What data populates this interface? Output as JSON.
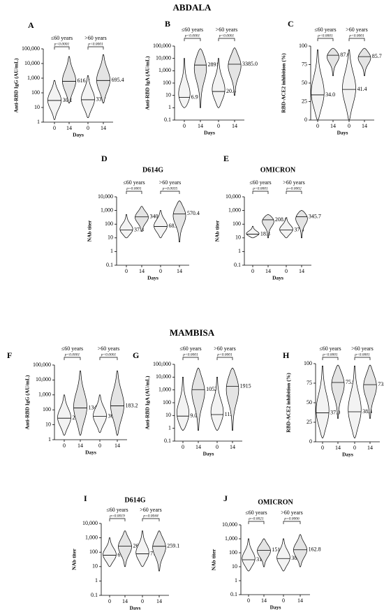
{
  "sections": [
    "ABDALA",
    "MAMBISA"
  ],
  "chart_data": [
    {
      "type": "violin",
      "panel": "A",
      "y_label": "Anti-RBD IgG (AU/mL)",
      "x_label": "Days",
      "log_y": true,
      "ylim": [
        1,
        100000
      ],
      "yticks": [
        1,
        10,
        100,
        {
          "value": 1000,
          "label": "1,000"
        },
        {
          "value": 10000,
          "label": "10,000"
        },
        {
          "value": 100000,
          "label": "100,000"
        }
      ],
      "groups": [
        "≤60 years",
        ">60 years"
      ],
      "p_values": [
        "p<0.0001",
        "p<0.0001"
      ],
      "categories": [
        "0",
        "14",
        "0",
        "14"
      ],
      "values": [
        30.1,
        616.2,
        33.7,
        695.4
      ],
      "value_labels": [
        "30.1",
        "616.2",
        "33.7",
        "695.4"
      ],
      "mins": [
        1.5,
        20,
        2,
        20
      ],
      "maxs": [
        700,
        30000,
        1500,
        40000
      ]
    },
    {
      "type": "violin",
      "panel": "B",
      "y_label": "Anti-RBD IgA (AU/mL)",
      "x_label": "Days",
      "log_y": true,
      "ylim": [
        0.1,
        100000
      ],
      "yticks": [
        0.1,
        1,
        10,
        100,
        {
          "value": 1000,
          "label": "1,000"
        },
        {
          "value": 10000,
          "label": "10,000"
        },
        {
          "value": 100000,
          "label": "100,000"
        }
      ],
      "groups": [
        "≤60 years",
        ">60 years"
      ],
      "p_values": [
        "p<0.0001",
        "p<0.0001"
      ],
      "categories": [
        "0",
        "14",
        "0",
        "14"
      ],
      "values": [
        6.9,
        2891,
        20.8,
        3385.0
      ],
      "value_labels": [
        "6.9",
        "2891",
        "20.8",
        "3385.0"
      ],
      "mins": [
        1,
        1,
        1,
        10
      ],
      "maxs": [
        10000,
        60000,
        10000,
        70000
      ]
    },
    {
      "type": "violin",
      "panel": "C",
      "y_label": "RBD-ACE2 inhibition (%)",
      "x_label": "Days",
      "log_y": false,
      "ylim": [
        0,
        100
      ],
      "yticks": [
        0,
        25,
        50,
        75,
        100
      ],
      "groups": [
        "≤60 years",
        ">60 years"
      ],
      "p_values": [
        "p<0.0001",
        "p<0.0001"
      ],
      "categories": [
        "0",
        "14",
        "0",
        "14"
      ],
      "values": [
        34.0,
        87.6,
        41.4,
        85.7
      ],
      "value_labels": [
        "34.0",
        "87.6",
        "41.4",
        "85.7"
      ],
      "mins": [
        0,
        60,
        0,
        60
      ],
      "maxs": [
        95,
        97,
        95,
        97
      ]
    },
    {
      "type": "violin",
      "panel": "D",
      "title": "D614G",
      "y_label": "NAb titer",
      "x_label": "Days",
      "log_y": true,
      "ylim": [
        0.1,
        10000
      ],
      "yticks": [
        0.1,
        1,
        10,
        100,
        {
          "value": 1000,
          "label": "1,000"
        },
        {
          "value": 10000,
          "label": "10,000"
        }
      ],
      "groups": [
        "≤60 years",
        ">60 years"
      ],
      "p_values": [
        "p=0.0001",
        "p=0.0035"
      ],
      "categories": [
        "0",
        "14",
        "0",
        "14"
      ],
      "values": [
        37.3,
        340.4,
        68.5,
        570.4
      ],
      "value_labels": [
        "37.3",
        "340.4",
        "68.5",
        "570.4"
      ],
      "mins": [
        10,
        30,
        10,
        5
      ],
      "maxs": [
        500,
        2000,
        1000,
        5000
      ]
    },
    {
      "type": "violin",
      "panel": "E",
      "title": "OMICRON",
      "y_label": "NAb titer",
      "x_label": "Days",
      "log_y": true,
      "ylim": [
        0.1,
        10000
      ],
      "yticks": [
        0.1,
        1,
        10,
        100,
        {
          "value": 1000,
          "label": "1,000"
        },
        {
          "value": 10000,
          "label": "10,000"
        }
      ],
      "groups": [
        "≤60 years",
        ">60 years"
      ],
      "p_values": [
        "p<0.0001",
        "p=0.0002"
      ],
      "categories": [
        "0",
        "14",
        "0",
        "14"
      ],
      "values": [
        18.8,
        208.6,
        37.8,
        345.7
      ],
      "value_labels": [
        "18.8",
        "208.6",
        "37.8",
        "345.7"
      ],
      "mins": [
        10,
        10,
        10,
        10
      ],
      "maxs": [
        70,
        500,
        300,
        1000
      ]
    },
    {
      "type": "violin",
      "panel": "F",
      "y_label": "Anti-RBD IgG (AU/mL)",
      "x_label": "Days",
      "log_y": true,
      "ylim": [
        1,
        100000
      ],
      "yticks": [
        1,
        10,
        100,
        {
          "value": 1000,
          "label": "1,000"
        },
        {
          "value": 10000,
          "label": "10,000"
        },
        {
          "value": 100000,
          "label": "100,000"
        }
      ],
      "groups": [
        "≤60 years",
        ">60 years"
      ],
      "p_values": [
        "p<0.0001",
        "p<0.0001"
      ],
      "categories": [
        "0",
        "14",
        "0",
        "14"
      ],
      "values": [
        27.6,
        134.6,
        36.9,
        183.2
      ],
      "value_labels": [
        "27.6",
        "134.6",
        "36.9",
        "183.2"
      ],
      "mins": [
        2,
        2,
        3,
        2
      ],
      "maxs": [
        1000,
        40000,
        1000,
        40000
      ]
    },
    {
      "type": "violin",
      "panel": "G",
      "y_label": "Anti-RBD IgA (AU/mL)",
      "x_label": "Days",
      "log_y": true,
      "ylim": [
        0.1,
        100000
      ],
      "yticks": [
        0.1,
        1,
        10,
        100,
        {
          "value": 1000,
          "label": "1,000"
        },
        {
          "value": 10000,
          "label": "10,000"
        },
        {
          "value": 100000,
          "label": "100,000"
        }
      ],
      "groups": [
        "≤60 years",
        ">60 years"
      ],
      "p_values": [
        "p<0.0001",
        "p<0.0001"
      ],
      "categories": [
        "0",
        "14",
        "0",
        "14"
      ],
      "values": [
        9.0,
        1052,
        11.8,
        1915
      ],
      "value_labels": [
        "9.0",
        "1052",
        "11.8",
        "1915"
      ],
      "mins": [
        0.7,
        0.7,
        0.7,
        0.7
      ],
      "maxs": [
        10000,
        50000,
        10000,
        50000
      ]
    },
    {
      "type": "violin",
      "panel": "H",
      "y_label": "RBD-ACE2 inhibition (%)",
      "x_label": "Days",
      "log_y": false,
      "ylim": [
        0,
        100
      ],
      "yticks": [
        0,
        25,
        50,
        75,
        100
      ],
      "groups": [
        "≤60 years",
        ">60 years"
      ],
      "p_values": [
        "p<0.0001",
        "p<0.0001"
      ],
      "categories": [
        "0",
        "14",
        "0",
        "14"
      ],
      "values": [
        37.0,
        75.9,
        38.4,
        73.1
      ],
      "value_labels": [
        "37.0",
        "75.9",
        "38.4",
        "73.1"
      ],
      "mins": [
        5,
        30,
        5,
        30
      ],
      "maxs": [
        97,
        98,
        97,
        98
      ]
    },
    {
      "type": "violin",
      "panel": "I",
      "title": "D614G",
      "y_label": "NAb titer",
      "x_label": "Days",
      "log_y": true,
      "ylim": [
        0.1,
        10000
      ],
      "yticks": [
        0.1,
        1,
        10,
        100,
        {
          "value": 1000,
          "label": "1,000"
        },
        {
          "value": 10000,
          "label": "10,000"
        }
      ],
      "groups": [
        "≤60 years",
        ">60 years"
      ],
      "p_values": [
        "p=0.0019",
        "p=0.0044"
      ],
      "categories": [
        "0",
        "14",
        "0",
        "14"
      ],
      "values": [
        61.5,
        264.3,
        77.8,
        259.1
      ],
      "value_labels": [
        "61.5",
        "264.3",
        "77.8",
        "259.1"
      ],
      "mins": [
        10,
        10,
        10,
        5
      ],
      "maxs": [
        1000,
        3000,
        3000,
        3000
      ]
    },
    {
      "type": "violin",
      "panel": "J",
      "title": "OMICRON",
      "y_label": "NAb titer",
      "x_label": "Days",
      "log_y": true,
      "ylim": [
        0.1,
        10000
      ],
      "yticks": [
        0.1,
        1,
        10,
        100,
        {
          "value": 1000,
          "label": "1,000"
        },
        {
          "value": 10000,
          "label": "10,000"
        }
      ],
      "groups": [
        "≤60 years",
        ">60 years"
      ],
      "p_values": [
        "p=0.0021",
        "p=0.0006"
      ],
      "categories": [
        "0",
        "14",
        "0",
        "14"
      ],
      "values": [
        31.7,
        151.4,
        38.8,
        162.8
      ],
      "value_labels": [
        "31.7",
        "151.4",
        "38.8",
        "162.8"
      ],
      "mins": [
        5,
        10,
        5,
        10
      ],
      "maxs": [
        1000,
        1000,
        1000,
        2000
      ]
    }
  ]
}
